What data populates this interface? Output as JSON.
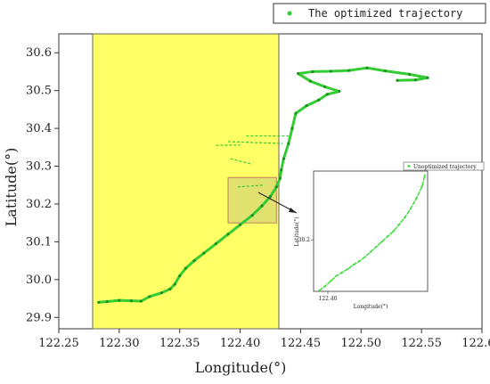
{
  "chart_data": [
    {
      "type": "scatter",
      "title": "",
      "xlabel": "Longitude(°)",
      "ylabel": "Latitude(°)",
      "xlim": [
        122.25,
        122.6
      ],
      "ylim": [
        29.87,
        30.65
      ],
      "xticks": [
        "122.25",
        "122.30",
        "122.35",
        "122.40",
        "122.45",
        "122.50",
        "122.55",
        "122.60"
      ],
      "yticks": [
        "29.9",
        "30.0",
        "30.1",
        "30.2",
        "30.3",
        "30.4",
        "30.5",
        "30.6"
      ],
      "legend": {
        "position": "top-right",
        "entries": [
          "The optimized trajectory"
        ]
      },
      "highlight_region": {
        "x": [
          122.278,
          122.432
        ],
        "y": [
          29.87,
          30.65
        ],
        "color": "#ffff66"
      },
      "zoom_box": {
        "x": [
          122.39,
          122.43
        ],
        "y": [
          30.15,
          30.27
        ]
      },
      "series": [
        {
          "name": "The optimized trajectory",
          "color": "#33cc33",
          "points": [
            [
              122.283,
              29.94
            ],
            [
              122.29,
              29.942
            ],
            [
              122.3,
              29.945
            ],
            [
              122.31,
              29.944
            ],
            [
              122.318,
              29.943
            ],
            [
              122.325,
              29.955
            ],
            [
              122.335,
              29.965
            ],
            [
              122.342,
              29.975
            ],
            [
              122.346,
              29.988
            ],
            [
              122.35,
              30.01
            ],
            [
              122.355,
              30.03
            ],
            [
              122.362,
              30.05
            ],
            [
              122.37,
              30.07
            ],
            [
              122.38,
              30.095
            ],
            [
              122.39,
              30.12
            ],
            [
              122.4,
              30.145
            ],
            [
              122.41,
              30.17
            ],
            [
              122.418,
              30.195
            ],
            [
              122.425,
              30.22
            ],
            [
              122.43,
              30.245
            ],
            [
              122.433,
              30.268
            ],
            [
              122.434,
              30.29
            ],
            [
              122.436,
              30.32
            ],
            [
              122.44,
              30.36
            ],
            [
              122.443,
              30.4
            ],
            [
              122.446,
              30.44
            ],
            [
              122.455,
              30.46
            ],
            [
              122.465,
              30.475
            ],
            [
              122.472,
              30.49
            ],
            [
              122.482,
              30.498
            ],
            [
              122.47,
              30.51
            ],
            [
              122.458,
              30.525
            ],
            [
              122.448,
              30.545
            ],
            [
              122.46,
              30.55
            ],
            [
              122.475,
              30.551
            ],
            [
              122.49,
              30.553
            ],
            [
              122.505,
              30.56
            ],
            [
              122.52,
              30.552
            ],
            [
              122.54,
              30.543
            ],
            [
              122.555,
              30.534
            ],
            [
              122.545,
              30.528
            ],
            [
              122.53,
              30.527
            ]
          ],
          "stray_segments": [
            [
              [
                122.405,
                30.38
              ],
              [
                122.44,
                30.38
              ]
            ],
            [
              [
                122.39,
                30.365
              ],
              [
                122.435,
                30.36
              ]
            ],
            [
              [
                122.38,
                30.355
              ],
              [
                122.4,
                30.356
              ]
            ],
            [
              [
                122.392,
                30.32
              ],
              [
                122.41,
                30.305
              ]
            ],
            [
              [
                122.398,
                30.245
              ],
              [
                122.42,
                30.25
              ]
            ]
          ]
        }
      ]
    },
    {
      "type": "scatter",
      "title": "",
      "xlabel": "Longitude(°)",
      "ylabel": "Latitude(°)",
      "xlim": [
        122.395,
        122.435
      ],
      "ylim": [
        30.14,
        30.28
      ],
      "xticks": [
        "122.40"
      ],
      "yticks": [
        "30.2"
      ],
      "legend": {
        "position": "top-right",
        "entries": [
          "Unoptimized trajectory"
        ]
      },
      "series": [
        {
          "name": "Unoptimized trajectory",
          "color": "#33dd33",
          "points": [
            [
              122.397,
              30.141
            ],
            [
              122.399,
              30.146
            ],
            [
              122.401,
              30.152
            ],
            [
              122.403,
              30.158
            ],
            [
              122.405,
              30.162
            ],
            [
              122.407,
              30.166
            ],
            [
              122.409,
              30.171
            ],
            [
              122.411,
              30.175
            ],
            [
              122.413,
              30.18
            ],
            [
              122.415,
              30.186
            ],
            [
              122.417,
              30.192
            ],
            [
              122.419,
              30.198
            ],
            [
              122.421,
              30.204
            ],
            [
              122.423,
              30.21
            ],
            [
              122.425,
              30.218
            ],
            [
              122.427,
              30.226
            ],
            [
              122.429,
              30.236
            ],
            [
              122.431,
              30.248
            ],
            [
              122.433,
              30.262
            ],
            [
              122.434,
              30.275
            ]
          ]
        }
      ]
    }
  ]
}
